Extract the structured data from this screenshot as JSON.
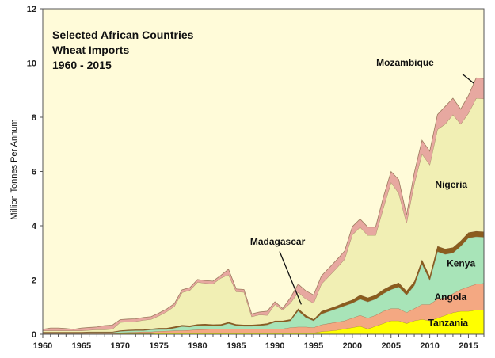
{
  "chart_data": {
    "type": "area",
    "stacked": true,
    "title_lines": [
      "Selected African Countries",
      "Wheat Imports",
      "1960 - 2015"
    ],
    "xlabel": "",
    "ylabel": "Million Tonnes Per Annum",
    "xlim": [
      1960,
      2017
    ],
    "ylim": [
      0,
      12
    ],
    "x_ticks": [
      1960,
      1965,
      1970,
      1975,
      1980,
      1985,
      1990,
      1995,
      2000,
      2005,
      2010,
      2015
    ],
    "y_ticks": [
      0,
      2,
      4,
      6,
      8,
      10,
      12
    ],
    "grid": false,
    "legend": "none",
    "plot_background": "#fffbd9",
    "x": [
      1960,
      1961,
      1962,
      1963,
      1964,
      1965,
      1966,
      1967,
      1968,
      1969,
      1970,
      1971,
      1972,
      1973,
      1974,
      1975,
      1976,
      1977,
      1978,
      1979,
      1980,
      1981,
      1982,
      1983,
      1984,
      1985,
      1986,
      1987,
      1988,
      1989,
      1990,
      1991,
      1992,
      1993,
      1994,
      1995,
      1996,
      1997,
      1998,
      1999,
      2000,
      2001,
      2002,
      2003,
      2004,
      2005,
      2006,
      2007,
      2008,
      2009,
      2010,
      2011,
      2012,
      2013,
      2014,
      2015,
      2016,
      2017
    ],
    "series": [
      {
        "name": "Tanzania",
        "color": "#ffff00",
        "values": [
          0.02,
          0.02,
          0.02,
          0.02,
          0.02,
          0.02,
          0.02,
          0.02,
          0.02,
          0.02,
          0.03,
          0.03,
          0.03,
          0.03,
          0.03,
          0.05,
          0.05,
          0.05,
          0.05,
          0.05,
          0.05,
          0.05,
          0.05,
          0.05,
          0.05,
          0.05,
          0.05,
          0.05,
          0.05,
          0.05,
          0.05,
          0.05,
          0.05,
          0.05,
          0.05,
          0.05,
          0.1,
          0.12,
          0.15,
          0.2,
          0.25,
          0.3,
          0.2,
          0.3,
          0.4,
          0.5,
          0.5,
          0.4,
          0.5,
          0.55,
          0.5,
          0.6,
          0.7,
          0.8,
          0.85,
          0.85,
          0.9,
          0.9
        ]
      },
      {
        "name": "Angola",
        "color": "#f4a882",
        "values": [
          0.01,
          0.01,
          0.01,
          0.01,
          0.01,
          0.01,
          0.02,
          0.02,
          0.02,
          0.02,
          0.03,
          0.04,
          0.05,
          0.06,
          0.06,
          0.06,
          0.07,
          0.08,
          0.09,
          0.1,
          0.12,
          0.13,
          0.14,
          0.15,
          0.15,
          0.15,
          0.15,
          0.15,
          0.15,
          0.15,
          0.15,
          0.15,
          0.2,
          0.22,
          0.22,
          0.2,
          0.25,
          0.28,
          0.3,
          0.3,
          0.35,
          0.4,
          0.4,
          0.4,
          0.45,
          0.45,
          0.45,
          0.4,
          0.45,
          0.55,
          0.6,
          0.7,
          0.65,
          0.7,
          0.8,
          0.9,
          0.95,
          0.98
        ]
      },
      {
        "name": "Kenya",
        "color": "#a8e4b8",
        "values": [
          0.03,
          0.03,
          0.03,
          0.03,
          0.03,
          0.03,
          0.03,
          0.03,
          0.03,
          0.03,
          0.05,
          0.06,
          0.06,
          0.05,
          0.08,
          0.07,
          0.06,
          0.1,
          0.15,
          0.12,
          0.15,
          0.15,
          0.12,
          0.12,
          0.2,
          0.12,
          0.1,
          0.1,
          0.12,
          0.15,
          0.25,
          0.25,
          0.25,
          0.6,
          0.35,
          0.25,
          0.4,
          0.45,
          0.5,
          0.55,
          0.55,
          0.6,
          0.6,
          0.6,
          0.65,
          0.7,
          0.8,
          0.65,
          0.85,
          1.5,
          0.9,
          1.75,
          1.6,
          1.5,
          1.6,
          1.8,
          1.75,
          1.7
        ]
      },
      {
        "name": "Madagascar",
        "color": "#8b5c1e",
        "values": [
          0.02,
          0.02,
          0.02,
          0.02,
          0.02,
          0.02,
          0.02,
          0.02,
          0.02,
          0.02,
          0.03,
          0.03,
          0.03,
          0.03,
          0.03,
          0.05,
          0.05,
          0.05,
          0.05,
          0.05,
          0.05,
          0.05,
          0.05,
          0.05,
          0.05,
          0.05,
          0.05,
          0.05,
          0.05,
          0.05,
          0.05,
          0.05,
          0.05,
          0.08,
          0.08,
          0.05,
          0.1,
          0.1,
          0.1,
          0.12,
          0.12,
          0.15,
          0.15,
          0.15,
          0.15,
          0.15,
          0.15,
          0.15,
          0.15,
          0.15,
          0.15,
          0.2,
          0.2,
          0.2,
          0.2,
          0.2,
          0.2,
          0.2
        ]
      },
      {
        "name": "Nigeria",
        "color": "#f1efb4",
        "values": [
          0.05,
          0.05,
          0.05,
          0.05,
          0.05,
          0.05,
          0.06,
          0.08,
          0.08,
          0.1,
          0.3,
          0.3,
          0.3,
          0.35,
          0.35,
          0.45,
          0.6,
          0.75,
          1.2,
          1.3,
          1.55,
          1.5,
          1.5,
          1.7,
          1.75,
          1.2,
          1.2,
          0.3,
          0.35,
          0.3,
          0.6,
          0.4,
          0.6,
          0.6,
          0.6,
          0.6,
          1.0,
          1.2,
          1.4,
          1.6,
          2.4,
          2.5,
          2.3,
          2.2,
          3.0,
          3.8,
          3.3,
          2.5,
          3.6,
          3.9,
          4.1,
          4.3,
          4.6,
          4.9,
          4.3,
          4.4,
          4.9,
          4.9
        ]
      },
      {
        "name": "Mozambique",
        "color": "#e7a8a0",
        "values": [
          0.05,
          0.1,
          0.1,
          0.08,
          0.05,
          0.1,
          0.1,
          0.1,
          0.15,
          0.15,
          0.1,
          0.1,
          0.1,
          0.1,
          0.1,
          0.1,
          0.1,
          0.1,
          0.1,
          0.1,
          0.1,
          0.1,
          0.1,
          0.1,
          0.2,
          0.1,
          0.1,
          0.1,
          0.1,
          0.15,
          0.1,
          0.05,
          0.2,
          0.3,
          0.3,
          0.3,
          0.3,
          0.3,
          0.3,
          0.3,
          0.3,
          0.3,
          0.3,
          0.3,
          0.4,
          0.4,
          0.5,
          0.3,
          0.4,
          0.5,
          0.5,
          0.55,
          0.65,
          0.6,
          0.55,
          0.65,
          0.75,
          0.75
        ]
      }
    ],
    "series_labels": [
      {
        "series": "Mozambique",
        "text": "Mozambique",
        "x": 2003.1,
        "y": 9.9
      },
      {
        "series": "Nigeria",
        "text": "Nigeria",
        "x": 2010.7,
        "y": 5.4
      },
      {
        "series": "Kenya",
        "text": "Kenya",
        "x": 2012.2,
        "y": 2.5
      },
      {
        "series": "Angola",
        "text": "Angola",
        "x": 2010.6,
        "y": 1.25
      },
      {
        "series": "Tanzania",
        "text": "Tanzania",
        "x": 2009.8,
        "y": 0.3
      },
      {
        "series": "Madagascar",
        "text": "Madagascar",
        "x": 1986.8,
        "y": 3.3
      }
    ],
    "leader_lines": [
      {
        "from": [
          2014.2,
          9.6
        ],
        "to": [
          2015.7,
          9.25
        ]
      },
      {
        "from": [
          1990.6,
          3.05
        ],
        "to": [
          1993.4,
          1.1
        ]
      }
    ]
  }
}
